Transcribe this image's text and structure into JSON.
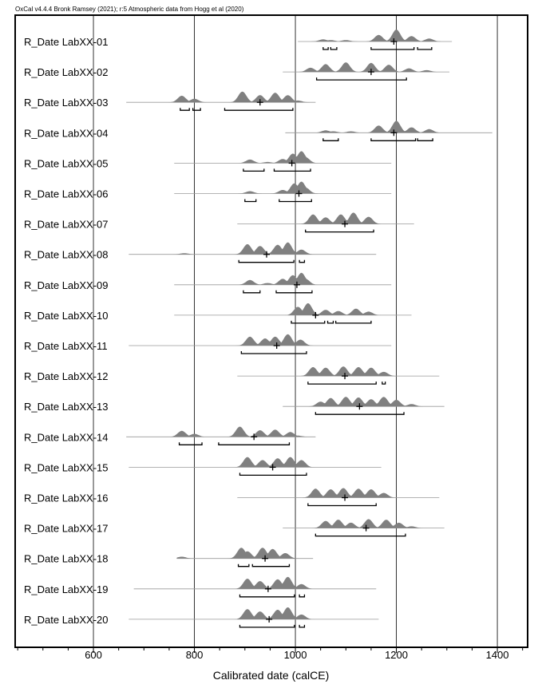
{
  "header": "OxCal v4.4.4 Bronk Ramsey (2021); r:5 Atmospheric data from Hogg et al (2020)",
  "chart_data": {
    "type": "area",
    "subtype": "radiocarbon calibrated probability distributions",
    "xlabel": "Calibrated date (calCE)",
    "xlim": [
      445,
      1460
    ],
    "xticks": [
      600,
      800,
      1000,
      1200,
      1400
    ],
    "grid": "vertical lines at major ticks",
    "fill_color": "#808080",
    "series": [
      {
        "name": "R_Date LabXX-01",
        "range": [
          1005,
          1310
        ],
        "mean": 1195,
        "peaks": [
          [
            1055,
            0.18
          ],
          [
            1070,
            0.12
          ],
          [
            1100,
            0.12
          ],
          [
            1165,
            0.55
          ],
          [
            1200,
            1.0
          ],
          [
            1230,
            0.45
          ],
          [
            1265,
            0.25
          ]
        ],
        "hpd": [
          [
            1055,
            1065
          ],
          [
            1070,
            1082
          ],
          [
            1150,
            1235
          ],
          [
            1242,
            1270
          ]
        ]
      },
      {
        "name": "R_Date LabXX-02",
        "range": [
          975,
          1305
        ],
        "mean": 1150,
        "peaks": [
          [
            1030,
            0.35
          ],
          [
            1060,
            0.65
          ],
          [
            1100,
            0.8
          ],
          [
            1150,
            0.75
          ],
          [
            1185,
            0.6
          ],
          [
            1225,
            0.3
          ],
          [
            1260,
            0.15
          ]
        ],
        "hpd": [
          [
            1042,
            1220
          ]
        ]
      },
      {
        "name": "R_Date LabXX-03",
        "range": [
          665,
          1040
        ],
        "mean": 930,
        "peaks": [
          [
            775,
            0.55
          ],
          [
            800,
            0.3
          ],
          [
            895,
            0.9
          ],
          [
            930,
            0.6
          ],
          [
            960,
            0.8
          ],
          [
            985,
            0.6
          ],
          [
            1005,
            0.15
          ]
        ],
        "hpd": [
          [
            772,
            790
          ],
          [
            797,
            812
          ],
          [
            860,
            995
          ]
        ]
      },
      {
        "name": "R_Date LabXX-04",
        "range": [
          980,
          1390
        ],
        "mean": 1195,
        "peaks": [
          [
            1060,
            0.2
          ],
          [
            1075,
            0.12
          ],
          [
            1110,
            0.12
          ],
          [
            1165,
            0.6
          ],
          [
            1200,
            1.0
          ],
          [
            1230,
            0.45
          ],
          [
            1265,
            0.3
          ]
        ],
        "hpd": [
          [
            1055,
            1085
          ],
          [
            1150,
            1238
          ],
          [
            1242,
            1272
          ]
        ]
      },
      {
        "name": "R_Date LabXX-05",
        "range": [
          760,
          1190
        ],
        "mean": 993,
        "peaks": [
          [
            910,
            0.3
          ],
          [
            945,
            0.1
          ],
          [
            975,
            0.35
          ],
          [
            995,
            0.8
          ],
          [
            1012,
            1.0
          ],
          [
            1020,
            0.5
          ]
        ],
        "hpd": [
          [
            897,
            938
          ],
          [
            958,
            1030
          ]
        ]
      },
      {
        "name": "R_Date LabXX-06",
        "range": [
          760,
          1190
        ],
        "mean": 1007,
        "peaks": [
          [
            910,
            0.2
          ],
          [
            975,
            0.3
          ],
          [
            998,
            0.85
          ],
          [
            1012,
            1.0
          ],
          [
            1020,
            0.5
          ]
        ],
        "hpd": [
          [
            900,
            922
          ],
          [
            968,
            1032
          ]
        ]
      },
      {
        "name": "R_Date LabXX-07",
        "range": [
          885,
          1235
        ],
        "mean": 1098,
        "peaks": [
          [
            1035,
            0.8
          ],
          [
            1060,
            0.55
          ],
          [
            1090,
            0.8
          ],
          [
            1115,
            0.95
          ],
          [
            1145,
            0.6
          ]
        ],
        "hpd": [
          [
            1020,
            1155
          ]
        ]
      },
      {
        "name": "R_Date LabXX-08",
        "range": [
          670,
          1160
        ],
        "mean": 943,
        "peaks": [
          [
            780,
            0.1
          ],
          [
            905,
            0.85
          ],
          [
            930,
            0.7
          ],
          [
            965,
            0.8
          ],
          [
            985,
            1.0
          ],
          [
            1012,
            0.4
          ]
        ],
        "hpd": [
          [
            888,
            997
          ],
          [
            1008,
            1018
          ]
        ]
      },
      {
        "name": "R_Date LabXX-09",
        "range": [
          760,
          1190
        ],
        "mean": 1003,
        "peaks": [
          [
            910,
            0.4
          ],
          [
            945,
            0.15
          ],
          [
            975,
            0.5
          ],
          [
            995,
            0.8
          ],
          [
            1012,
            1.0
          ],
          [
            1020,
            0.5
          ]
        ],
        "hpd": [
          [
            897,
            930
          ],
          [
            962,
            1033
          ]
        ]
      },
      {
        "name": "R_Date LabXX-10",
        "range": [
          760,
          1230
        ],
        "mean": 1040,
        "peaks": [
          [
            1005,
            0.7
          ],
          [
            1025,
            1.0
          ],
          [
            1060,
            0.45
          ],
          [
            1085,
            0.35
          ],
          [
            1120,
            0.55
          ],
          [
            1145,
            0.3
          ]
        ],
        "hpd": [
          [
            992,
            1058
          ],
          [
            1064,
            1075
          ],
          [
            1080,
            1150
          ]
        ]
      },
      {
        "name": "R_Date LabXX-11",
        "range": [
          670,
          1190
        ],
        "mean": 963,
        "peaks": [
          [
            910,
            0.75
          ],
          [
            940,
            0.6
          ],
          [
            960,
            0.75
          ],
          [
            985,
            0.95
          ],
          [
            1010,
            0.5
          ]
        ],
        "hpd": [
          [
            893,
            1022
          ]
        ]
      },
      {
        "name": "R_Date LabXX-12",
        "range": [
          885,
          1285
        ],
        "mean": 1098,
        "peaks": [
          [
            1035,
            0.75
          ],
          [
            1060,
            0.7
          ],
          [
            1095,
            0.8
          ],
          [
            1125,
            0.75
          ],
          [
            1150,
            0.7
          ],
          [
            1175,
            0.35
          ]
        ],
        "hpd": [
          [
            1025,
            1160
          ],
          [
            1172,
            1178
          ]
        ]
      },
      {
        "name": "R_Date LabXX-13",
        "range": [
          975,
          1295
        ],
        "mean": 1127,
        "peaks": [
          [
            1050,
            0.4
          ],
          [
            1070,
            0.7
          ],
          [
            1100,
            0.8
          ],
          [
            1125,
            0.75
          ],
          [
            1150,
            0.6
          ],
          [
            1175,
            0.8
          ],
          [
            1200,
            0.55
          ],
          [
            1230,
            0.2
          ]
        ],
        "hpd": [
          [
            1040,
            1215
          ]
        ]
      },
      {
        "name": "R_Date LabXX-14",
        "range": [
          665,
          1040
        ],
        "mean": 918,
        "peaks": [
          [
            775,
            0.5
          ],
          [
            800,
            0.25
          ],
          [
            890,
            0.85
          ],
          [
            930,
            0.55
          ],
          [
            960,
            0.6
          ],
          [
            990,
            0.4
          ],
          [
            1005,
            0.1
          ]
        ],
        "hpd": [
          [
            770,
            815
          ],
          [
            848,
            988
          ]
        ]
      },
      {
        "name": "R_Date LabXX-15",
        "range": [
          670,
          1170
        ],
        "mean": 955,
        "peaks": [
          [
            905,
            0.85
          ],
          [
            935,
            0.6
          ],
          [
            965,
            0.75
          ],
          [
            990,
            0.85
          ],
          [
            1012,
            0.6
          ]
        ],
        "hpd": [
          [
            890,
            1022
          ]
        ]
      },
      {
        "name": "R_Date LabXX-16",
        "range": [
          885,
          1285
        ],
        "mean": 1098,
        "peaks": [
          [
            1040,
            0.75
          ],
          [
            1070,
            0.7
          ],
          [
            1095,
            0.8
          ],
          [
            1125,
            0.75
          ],
          [
            1150,
            0.7
          ],
          [
            1175,
            0.4
          ]
        ],
        "hpd": [
          [
            1025,
            1160
          ]
        ]
      },
      {
        "name": "R_Date LabXX-17",
        "range": [
          975,
          1295
        ],
        "mean": 1140,
        "peaks": [
          [
            1060,
            0.6
          ],
          [
            1085,
            0.7
          ],
          [
            1110,
            0.45
          ],
          [
            1145,
            0.75
          ],
          [
            1180,
            0.7
          ],
          [
            1205,
            0.45
          ],
          [
            1230,
            0.15
          ]
        ],
        "hpd": [
          [
            1040,
            1218
          ]
        ]
      },
      {
        "name": "R_Date LabXX-18",
        "range": [
          765,
          1035
        ],
        "mean": 940,
        "peaks": [
          [
            775,
            0.15
          ],
          [
            893,
            0.9
          ],
          [
            905,
            0.6
          ],
          [
            935,
            0.9
          ],
          [
            955,
            0.8
          ],
          [
            980,
            0.45
          ]
        ],
        "hpd": [
          [
            887,
            908
          ],
          [
            915,
            988
          ]
        ]
      },
      {
        "name": "R_Date LabXX-19",
        "range": [
          680,
          1160
        ],
        "mean": 946,
        "peaks": [
          [
            905,
            0.85
          ],
          [
            930,
            0.65
          ],
          [
            965,
            0.8
          ],
          [
            985,
            1.0
          ],
          [
            1012,
            0.4
          ]
        ],
        "hpd": [
          [
            890,
            998
          ],
          [
            1008,
            1018
          ]
        ]
      },
      {
        "name": "R_Date LabXX-20",
        "range": [
          670,
          1165
        ],
        "mean": 948,
        "peaks": [
          [
            905,
            0.85
          ],
          [
            930,
            0.65
          ],
          [
            965,
            0.8
          ],
          [
            985,
            1.0
          ],
          [
            1012,
            0.4
          ]
        ],
        "hpd": [
          [
            890,
            998
          ],
          [
            1008,
            1018
          ]
        ]
      }
    ]
  }
}
